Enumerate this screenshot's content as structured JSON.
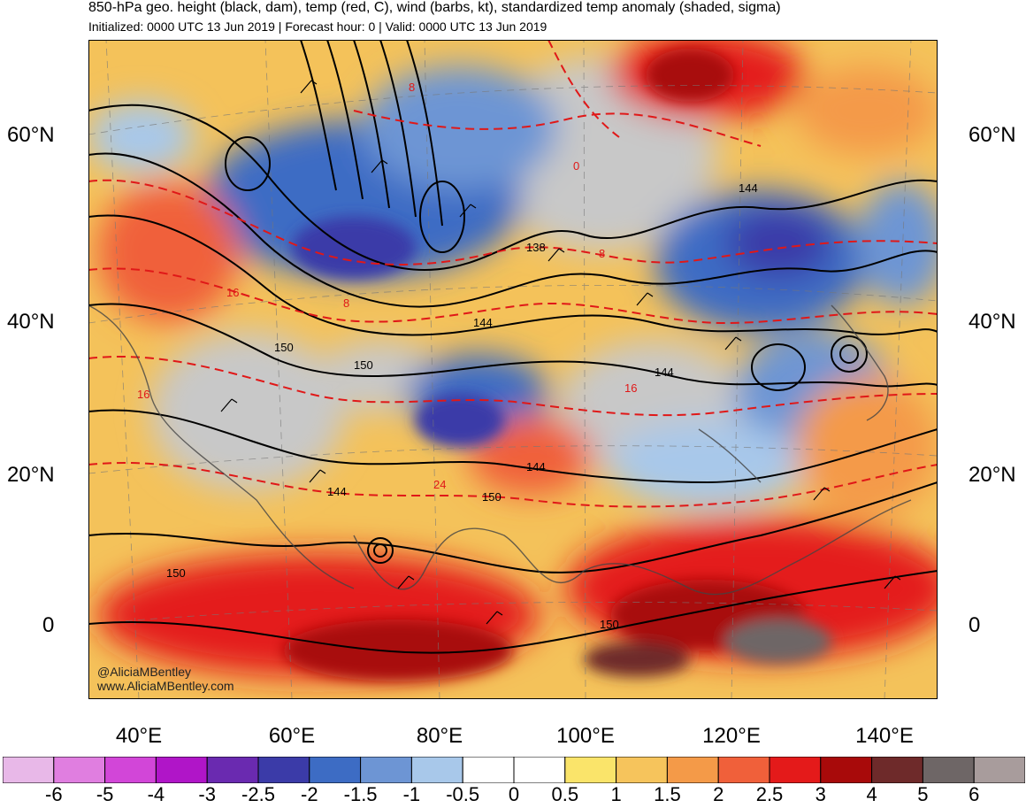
{
  "header": {
    "title": "850-hPa geo. height (black, dam), temp (red, C), wind (barbs, kt), standardized temp anomaly (shaded, sigma)",
    "subtitle": "Initialized: 0000 UTC 13 Jun 2019 | Forecast hour: 0 | Valid: 0000 UTC 13 Jun 2019"
  },
  "axes": {
    "lat_labels": [
      "60°N",
      "40°N",
      "20°N",
      "0"
    ],
    "lon_labels": [
      "40°E",
      "60°E",
      "80°E",
      "100°E",
      "120°E",
      "140°E"
    ]
  },
  "contour_labels": {
    "height": [
      "144",
      "138",
      "144",
      "150",
      "150",
      "144",
      "144",
      "144",
      "150",
      "150",
      "150"
    ],
    "temp": [
      "8",
      "0",
      "8",
      "16",
      "16",
      "8",
      "16",
      "24"
    ]
  },
  "credits": {
    "handle": "@AliciaMBentley",
    "site": "www.AliciaMBentley.com"
  },
  "colorbar": {
    "labels": [
      "-6",
      "-5",
      "-4",
      "-3",
      "-2.5",
      "-2",
      "-1.5",
      "-1",
      "-0.5",
      "0",
      "0.5",
      "1",
      "1.5",
      "2",
      "2.5",
      "3",
      "4",
      "5",
      "6"
    ],
    "colors": [
      "#e8b8e8",
      "#e07ee0",
      "#d246d8",
      "#b015c8",
      "#6a2ab0",
      "#3b3ba8",
      "#3d6cc4",
      "#6d95d4",
      "#a8c8ea",
      "#ffffff",
      "#ffffff",
      "#fae46a",
      "#f6c45c",
      "#f49a48",
      "#f0603a",
      "#e41a1a",
      "#a80a0a",
      "#6e2a2a",
      "#6e6666",
      "#a89c9c"
    ]
  }
}
